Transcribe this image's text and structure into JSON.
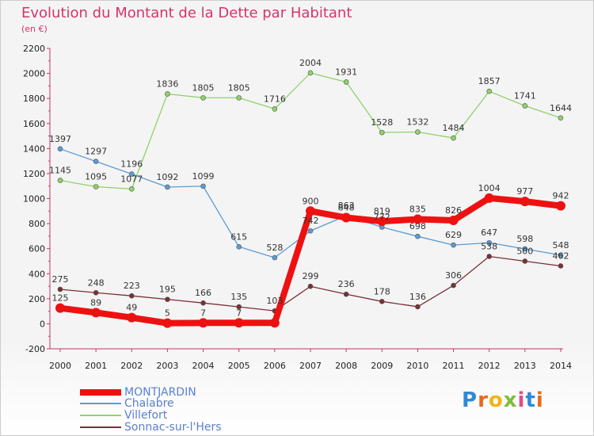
{
  "chart_data": {
    "type": "line",
    "title": "Evolution du Montant de la Dette par Habitant",
    "subtitle": "(en €)",
    "x": [
      "2000",
      "2001",
      "2002",
      "2003",
      "2004",
      "2005",
      "2006",
      "2007",
      "2008",
      "2009",
      "2010",
      "2011",
      "2012",
      "2013",
      "2014"
    ],
    "ylim": [
      -200,
      2200
    ],
    "yticks": [
      "2200",
      "2000",
      "1800",
      "1600",
      "1400",
      "1200",
      "1000",
      "800",
      "600",
      "400",
      "200",
      "0",
      "-200"
    ],
    "grid": false,
    "legend_position": "bottom-left",
    "series": [
      {
        "name": "MONTJARDIN",
        "color": "#ee1111",
        "values": [
          125,
          89,
          49,
          5,
          7,
          7,
          7,
          900,
          848,
          819,
          835,
          826,
          1004,
          977,
          942
        ],
        "labels": [
          "125",
          "89",
          "49",
          "5",
          "7",
          "7",
          "",
          "900",
          "848",
          "819",
          "835",
          "826",
          "1004",
          "977",
          "942"
        ]
      },
      {
        "name": "Chalabre",
        "color": "#5b9bd5",
        "values": [
          1397,
          1297,
          1196,
          1092,
          1099,
          615,
          528,
          742,
          863,
          772,
          698,
          629,
          647,
          598,
          548
        ],
        "labels": [
          "1397",
          "1297",
          "1196",
          "1092",
          "1099",
          "615",
          "528",
          "742",
          "863",
          "772",
          "698",
          "629",
          "647",
          "598",
          "548"
        ]
      },
      {
        "name": "Villefort",
        "color": "#8fd26a",
        "values": [
          1145,
          1095,
          1077,
          1836,
          1805,
          1805,
          1716,
          2004,
          1931,
          1528,
          1532,
          1484,
          1857,
          1741,
          1644
        ],
        "labels": [
          "1145",
          "1095",
          "1077",
          "1836",
          "1805",
          "1805",
          "1716",
          "2004",
          "1931",
          "1528",
          "1532",
          "1484",
          "1857",
          "1741",
          "1644"
        ]
      },
      {
        "name": "Sonnac-sur-l'Hers",
        "color": "#7a3034",
        "values": [
          275,
          248,
          223,
          195,
          166,
          135,
          103,
          299,
          236,
          178,
          136,
          306,
          538,
          500,
          462
        ],
        "labels": [
          "275",
          "248",
          "223",
          "195",
          "166",
          "135",
          "103",
          "299",
          "236",
          "178",
          "136",
          "306",
          "538",
          "500",
          "462"
        ]
      }
    ]
  },
  "legend": {
    "items": [
      {
        "label": "MONTJARDIN",
        "color": "#ee1111"
      },
      {
        "label": "Chalabre",
        "color": "#5b9bd5"
      },
      {
        "label": "Villefort",
        "color": "#8fd26a"
      },
      {
        "label": "Sonnac-sur-l'Hers",
        "color": "#7a3034"
      }
    ]
  },
  "brand": {
    "letters": [
      "P",
      "r",
      "o",
      "x",
      "i",
      "t",
      "i"
    ]
  }
}
